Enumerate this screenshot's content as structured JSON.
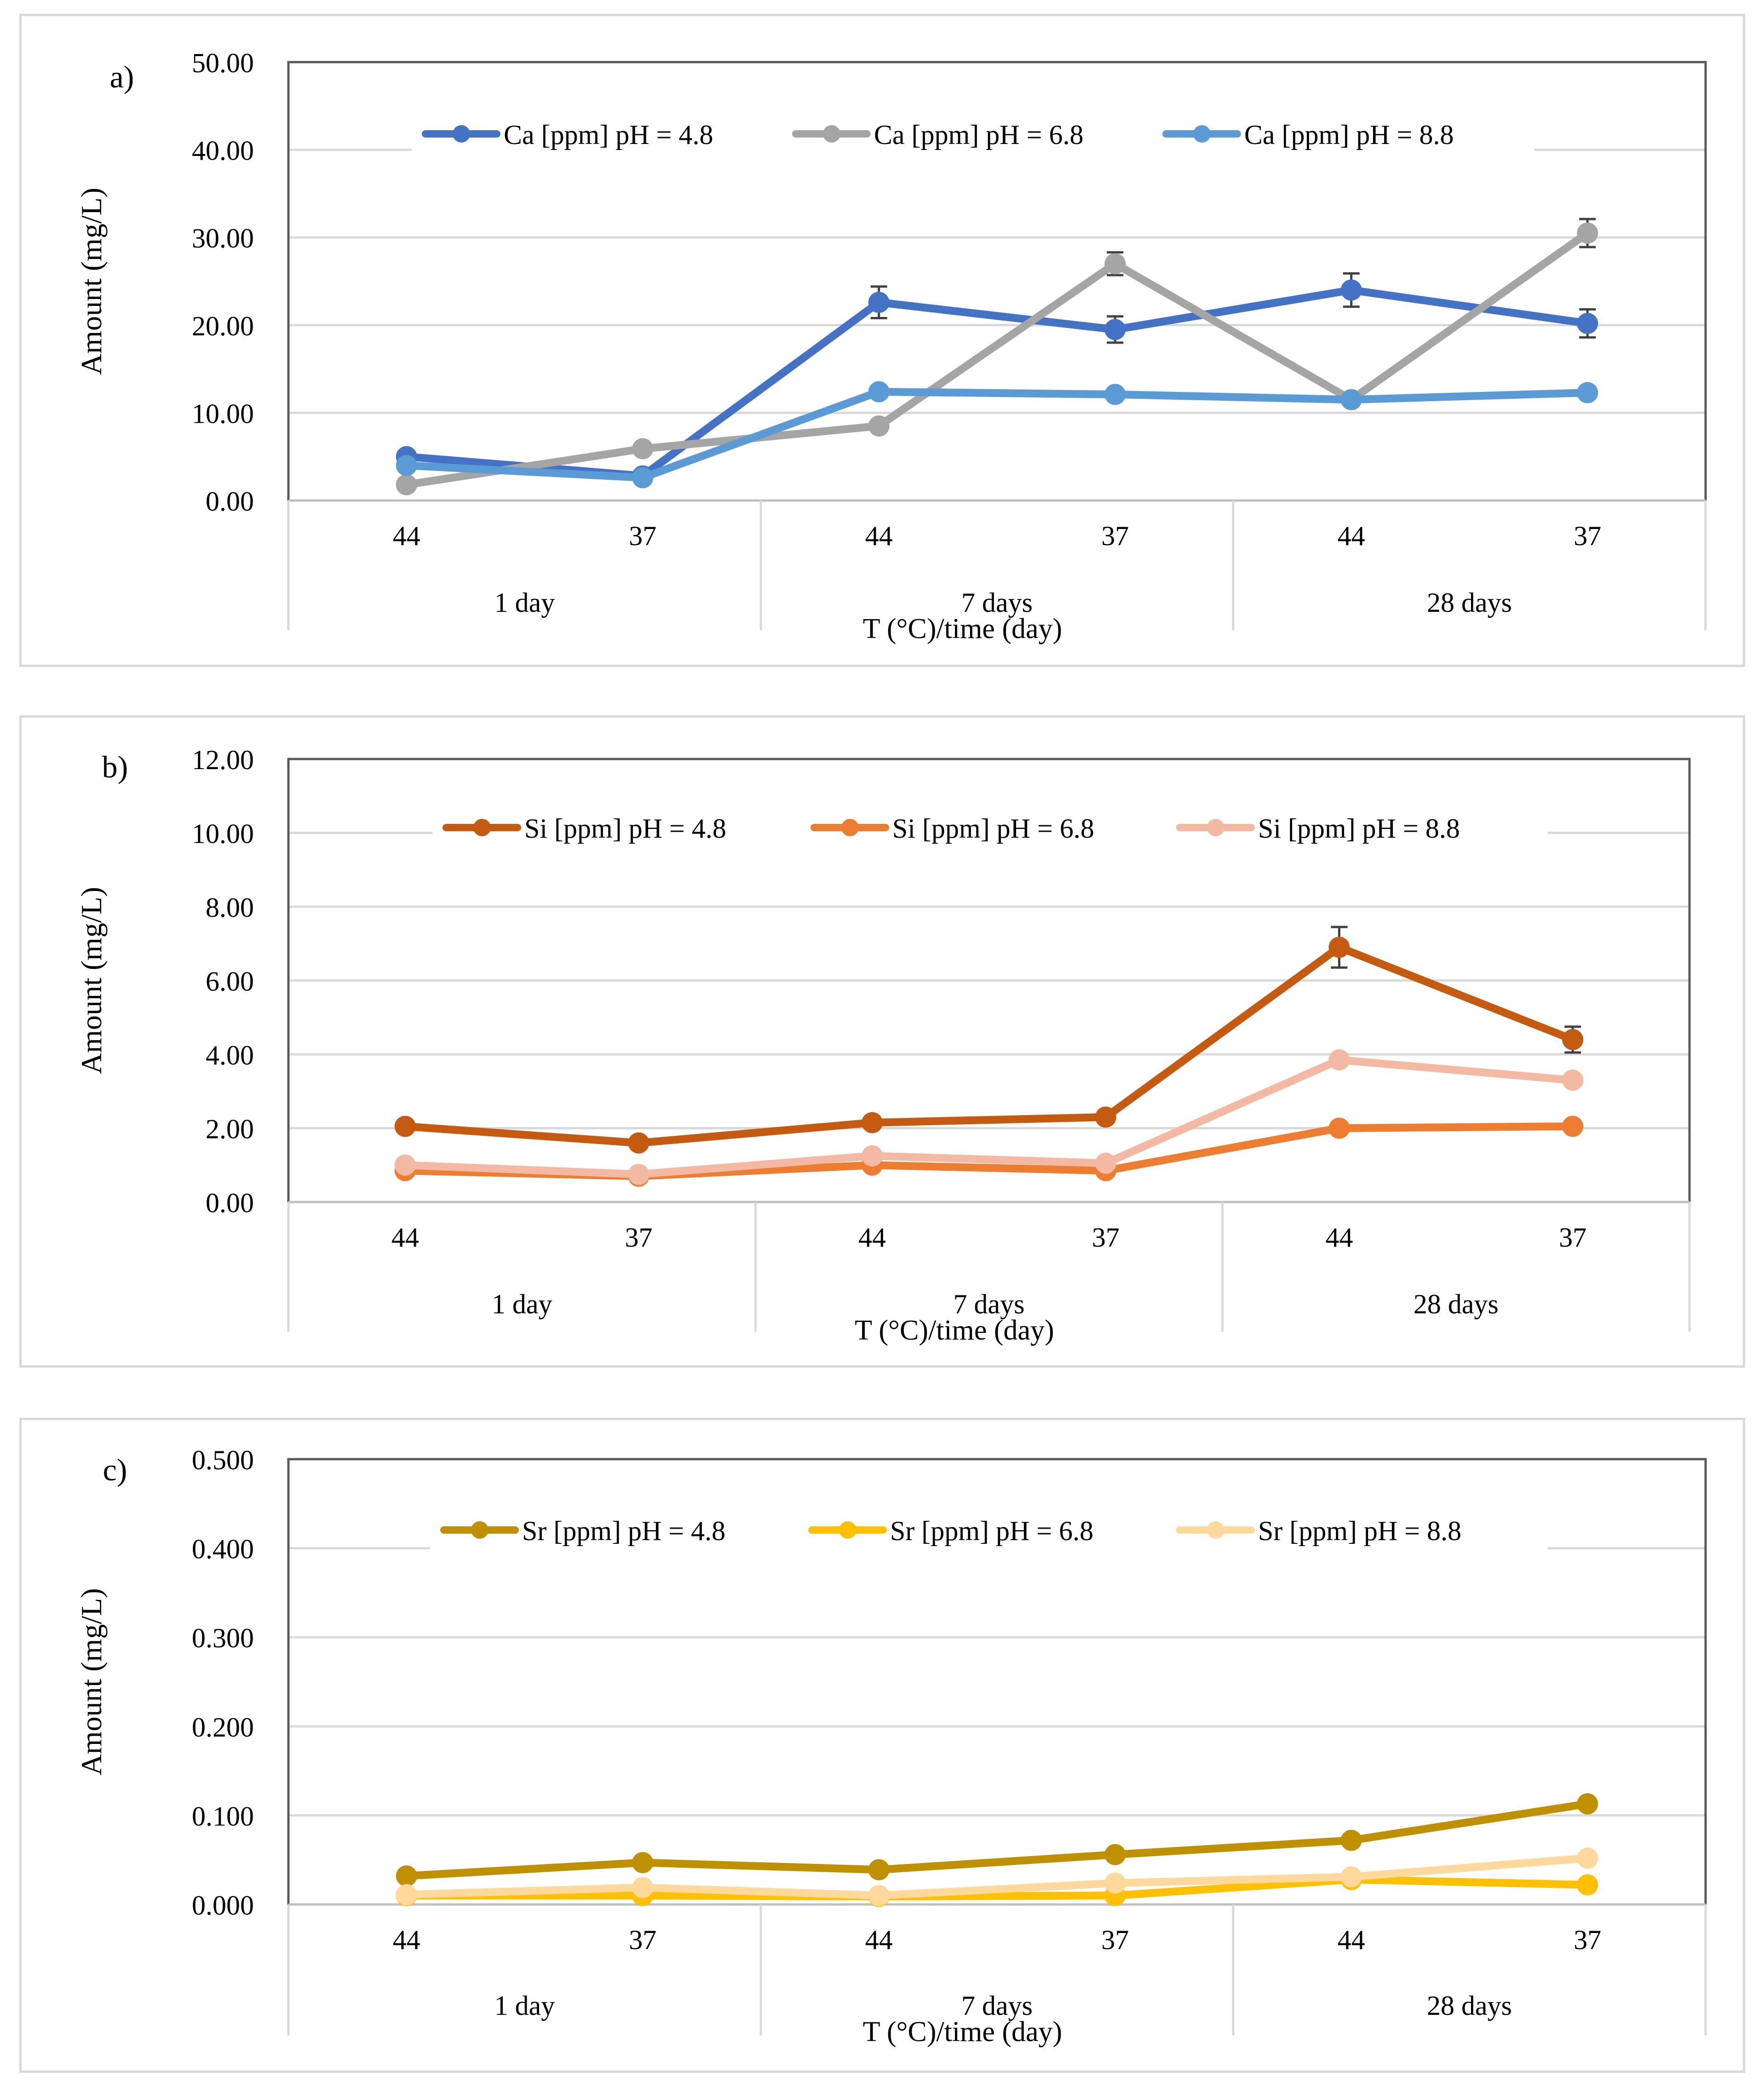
{
  "chart_data": [
    {
      "type": "line",
      "panel_label": "a)",
      "ylabel": "Amount (mg/L)",
      "xlabel": "T (°C)/time (day)",
      "ylim": [
        0,
        50
      ],
      "yticks": [
        "0.00",
        "10.00",
        "20.00",
        "30.00",
        "40.00",
        "50.00"
      ],
      "categories": [
        "44",
        "37",
        "44",
        "37",
        "44",
        "37"
      ],
      "groups": [
        "1 day",
        "7 days",
        "28 days"
      ],
      "grid": true,
      "legend_position": "top",
      "series": [
        {
          "name": "Ca [ppm] pH = 4.8",
          "color": "#4472c4",
          "values": [
            5.0,
            2.8,
            22.6,
            19.5,
            24.0,
            20.2
          ],
          "errors": [
            0,
            0,
            1.8,
            1.5,
            1.9,
            1.6
          ]
        },
        {
          "name": "Ca [ppm] pH = 6.8",
          "color": "#a5a5a5",
          "values": [
            1.8,
            5.9,
            8.5,
            27.0,
            11.5,
            30.5
          ],
          "errors": [
            0,
            0,
            0,
            1.3,
            0,
            1.6
          ]
        },
        {
          "name": "Ca [ppm] pH = 8.8",
          "color": "#5b9bd5",
          "values": [
            4.0,
            2.6,
            12.4,
            12.1,
            11.5,
            12.3
          ],
          "errors": [
            0,
            0,
            0,
            0,
            0,
            0
          ]
        }
      ]
    },
    {
      "type": "line",
      "panel_label": "b)",
      "ylabel": "Amount (mg/L)",
      "xlabel": "T (°C)/time (day)",
      "ylim": [
        0,
        12
      ],
      "yticks": [
        "0.00",
        "2.00",
        "4.00",
        "6.00",
        "8.00",
        "10.00",
        "12.00"
      ],
      "categories": [
        "44",
        "37",
        "44",
        "37",
        "44",
        "37"
      ],
      "groups": [
        "1 day",
        "7 days",
        "28 days"
      ],
      "grid": true,
      "legend_position": "top",
      "series": [
        {
          "name": "Si [ppm] pH = 4.8",
          "color": "#c55a11",
          "values": [
            2.05,
            1.6,
            2.15,
            2.3,
            6.9,
            4.4
          ],
          "errors": [
            0,
            0,
            0,
            0,
            0.55,
            0.35
          ]
        },
        {
          "name": "Si [ppm] pH = 6.8",
          "color": "#ed7d31",
          "values": [
            0.85,
            0.7,
            1.0,
            0.85,
            2.0,
            2.05
          ],
          "errors": [
            0,
            0,
            0,
            0,
            0,
            0
          ]
        },
        {
          "name": "Si [ppm] pH = 8.8",
          "color": "#f4b9a2",
          "values": [
            1.0,
            0.75,
            1.25,
            1.05,
            3.85,
            3.3
          ],
          "errors": [
            0,
            0,
            0,
            0,
            0,
            0
          ]
        }
      ]
    },
    {
      "type": "line",
      "panel_label": "c)",
      "ylabel": "Amount (mg/L)",
      "xlabel": "T (°C)/time (day)",
      "ylim": [
        0,
        0.5
      ],
      "yticks": [
        "0.000",
        "0.100",
        "0.200",
        "0.300",
        "0.400",
        "0.500"
      ],
      "categories": [
        "44",
        "37",
        "44",
        "37",
        "44",
        "37"
      ],
      "groups": [
        "1 day",
        "7 days",
        "28 days"
      ],
      "grid": true,
      "legend_position": "top",
      "series": [
        {
          "name": "Sr [ppm] pH = 4.8",
          "color": "#bf9000",
          "values": [
            0.032,
            0.047,
            0.039,
            0.056,
            0.072,
            0.113
          ],
          "errors": [
            0,
            0,
            0,
            0,
            0,
            0.006
          ]
        },
        {
          "name": "Sr [ppm] pH = 6.8",
          "color": "#ffc000",
          "values": [
            0.01,
            0.01,
            0.009,
            0.01,
            0.028,
            0.022
          ],
          "errors": [
            0,
            0,
            0,
            0,
            0,
            0
          ]
        },
        {
          "name": "Sr [ppm] pH = 8.8",
          "color": "#ffd89b",
          "values": [
            0.011,
            0.019,
            0.01,
            0.024,
            0.031,
            0.052
          ],
          "errors": [
            0,
            0,
            0,
            0,
            0,
            0
          ]
        }
      ]
    }
  ]
}
